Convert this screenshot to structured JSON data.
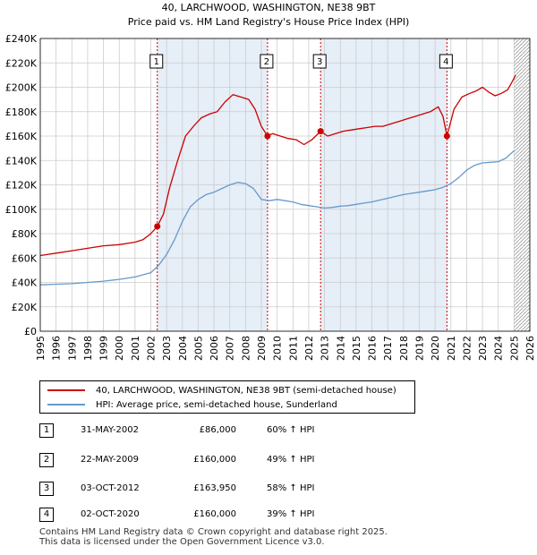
{
  "chart_data": {
    "type": "line",
    "title": "40, LARCHWOOD, WASHINGTON, NE38 9BT",
    "subtitle": "Price paid vs. HM Land Registry's House Price Index (HPI)",
    "xlim": [
      1995,
      2026
    ],
    "ylim": [
      0,
      240000
    ],
    "y_ticks": [
      0,
      20000,
      40000,
      60000,
      80000,
      100000,
      120000,
      140000,
      160000,
      180000,
      200000,
      220000,
      240000
    ],
    "y_tick_labels": [
      "£0",
      "£20K",
      "£40K",
      "£60K",
      "£80K",
      "£100K",
      "£120K",
      "£140K",
      "£160K",
      "£180K",
      "£200K",
      "£220K",
      "£240K"
    ],
    "x_ticks": [
      1995,
      1996,
      1997,
      1998,
      1999,
      2000,
      2001,
      2002,
      2003,
      2004,
      2005,
      2006,
      2007,
      2008,
      2009,
      2010,
      2011,
      2012,
      2013,
      2014,
      2015,
      2016,
      2017,
      2018,
      2019,
      2020,
      2021,
      2022,
      2023,
      2024,
      2025,
      2026
    ],
    "x_tick_labels": [
      "1995",
      "1996",
      "1997",
      "1998",
      "1999",
      "2000",
      "2001",
      "2002",
      "2003",
      "2004",
      "2005",
      "2006",
      "2007",
      "2008",
      "2009",
      "2010",
      "2011",
      "2012",
      "2013",
      "2014",
      "2015",
      "2016",
      "2017",
      "2018",
      "2019",
      "2020",
      "2021",
      "2022",
      "2023",
      "2024",
      "2025",
      "2026"
    ],
    "grid": true,
    "shaded_spans": [
      [
        2002.41,
        2009.39
      ],
      [
        2012.75,
        2020.75
      ]
    ],
    "future_hatch_from": 2025.0,
    "series": [
      {
        "name": "40, LARCHWOOD, WASHINGTON, NE38 9BT (semi-detached house)",
        "color": "#cc0000",
        "x": [
          1995.0,
          1996.0,
          1997.0,
          1998.0,
          1999.0,
          2000.0,
          2001.0,
          2001.5,
          2002.0,
          2002.41,
          2002.8,
          2003.2,
          2003.7,
          2004.2,
          2004.7,
          2005.2,
          2005.7,
          2006.2,
          2006.7,
          2007.2,
          2007.7,
          2008.2,
          2008.6,
          2009.0,
          2009.39,
          2009.7,
          2010.2,
          2010.7,
          2011.2,
          2011.7,
          2012.2,
          2012.75,
          2013.2,
          2013.7,
          2014.2,
          2014.7,
          2015.2,
          2015.7,
          2016.2,
          2016.7,
          2017.2,
          2017.7,
          2018.2,
          2018.7,
          2019.2,
          2019.7,
          2020.2,
          2020.5,
          2020.75,
          2021.2,
          2021.7,
          2022.2,
          2022.6,
          2023.0,
          2023.4,
          2023.8,
          2024.2,
          2024.6,
          2024.9,
          2025.1
        ],
        "values": [
          62000,
          64000,
          66000,
          68000,
          70000,
          71000,
          73000,
          75000,
          80000,
          86000,
          96000,
          118000,
          140000,
          160000,
          168000,
          175000,
          178000,
          180000,
          188000,
          194000,
          192000,
          190000,
          182000,
          168000,
          160000,
          162000,
          160000,
          158000,
          157000,
          153000,
          157000,
          163950,
          160000,
          162000,
          164000,
          165000,
          166000,
          167000,
          168000,
          168000,
          170000,
          172000,
          174000,
          176000,
          178000,
          180000,
          184000,
          176000,
          160000,
          182000,
          192000,
          195000,
          197000,
          200000,
          196000,
          193000,
          195000,
          198000,
          205000,
          210000
        ]
      },
      {
        "name": "HPI: Average price, semi-detached house, Sunderland",
        "color": "#6699cc",
        "x": [
          1995.0,
          1996.0,
          1997.0,
          1998.0,
          1999.0,
          2000.0,
          2001.0,
          2002.0,
          2002.5,
          2003.0,
          2003.5,
          2004.0,
          2004.5,
          2005.0,
          2005.5,
          2006.0,
          2006.5,
          2007.0,
          2007.5,
          2008.0,
          2008.5,
          2009.0,
          2009.5,
          2010.0,
          2010.5,
          2011.0,
          2011.5,
          2012.0,
          2012.5,
          2013.0,
          2013.5,
          2014.0,
          2014.5,
          2015.0,
          2015.5,
          2016.0,
          2016.5,
          2017.0,
          2017.5,
          2018.0,
          2018.5,
          2019.0,
          2019.5,
          2020.0,
          2020.5,
          2021.0,
          2021.5,
          2022.0,
          2022.5,
          2023.0,
          2023.5,
          2024.0,
          2024.5,
          2025.0
        ],
        "values": [
          38000,
          38500,
          39000,
          40000,
          41000,
          42500,
          44500,
          48000,
          54000,
          63000,
          75000,
          90000,
          102000,
          108000,
          112000,
          114000,
          117000,
          120000,
          122000,
          121000,
          117000,
          108000,
          107000,
          108000,
          107000,
          106000,
          104000,
          103000,
          102000,
          101000,
          101500,
          102500,
          103000,
          104000,
          105000,
          106000,
          107500,
          109000,
          110500,
          112000,
          113000,
          114000,
          115000,
          116000,
          118000,
          121000,
          126000,
          132000,
          136000,
          138000,
          138500,
          139000,
          142000,
          148000
        ]
      }
    ],
    "transactions": [
      {
        "num": "1",
        "x": 2002.41,
        "value": 86000
      },
      {
        "num": "2",
        "x": 2009.39,
        "value": 160000
      },
      {
        "num": "3",
        "x": 2012.75,
        "value": 163950
      },
      {
        "num": "4",
        "x": 2020.75,
        "value": 160000
      }
    ]
  },
  "legend": {
    "property_label": "40, LARCHWOOD, WASHINGTON, NE38 9BT (semi-detached house)",
    "hpi_label": "HPI: Average price, semi-detached house, Sunderland"
  },
  "table": [
    {
      "num": "1",
      "date": "31-MAY-2002",
      "price": "£86,000",
      "hpi": "60% ↑ HPI"
    },
    {
      "num": "2",
      "date": "22-MAY-2009",
      "price": "£160,000",
      "hpi": "49% ↑ HPI"
    },
    {
      "num": "3",
      "date": "03-OCT-2012",
      "price": "£163,950",
      "hpi": "58% ↑ HPI"
    },
    {
      "num": "4",
      "date": "02-OCT-2020",
      "price": "£160,000",
      "hpi": "39% ↑ HPI"
    }
  ],
  "footer": {
    "line1": "Contains HM Land Registry data © Crown copyright and database right 2025.",
    "line2": "This data is licensed under the Open Government Licence v3.0."
  },
  "colors": {
    "property": "#cc0000",
    "hpi": "#6699cc",
    "shade": "#e6eef7",
    "grid": "#cccccc"
  }
}
